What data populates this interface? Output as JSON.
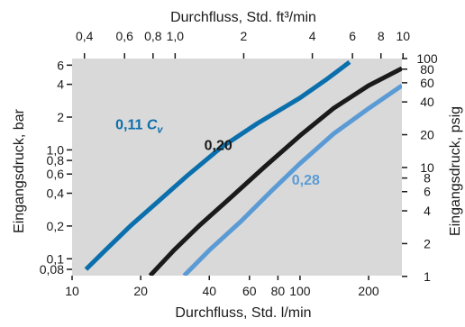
{
  "chart_data": {
    "type": "line",
    "title": "",
    "xlabel_bottom": "Durchfluss, Std. l/min",
    "xlabel_top": "Durchfluss, Std. ft³/min",
    "ylabel_left": "Eingangsdruck, bar",
    "ylabel_right": "Eingangsdruck, psig",
    "x_scale": "log",
    "y_scale": "log",
    "xlim": [
      10,
      280
    ],
    "ylim": [
      0.07,
      6.9
    ],
    "grid": false,
    "background": "#d9d9d9",
    "x_bottom_ticks": [
      {
        "value": 10,
        "label": "10"
      },
      {
        "value": 20,
        "label": "20"
      },
      {
        "value": 40,
        "label": "40"
      },
      {
        "value": 60,
        "label": "60"
      },
      {
        "value": 80,
        "label": "80"
      },
      {
        "value": 100,
        "label": "100"
      },
      {
        "value": 200,
        "label": "200"
      }
    ],
    "x_top_ticks": [
      {
        "value": 0.4,
        "label": "0,4"
      },
      {
        "value": 0.6,
        "label": "0,6"
      },
      {
        "value": 0.8,
        "label": "0,8"
      },
      {
        "value": 1.0,
        "label": "1,0"
      },
      {
        "value": 2,
        "label": "2"
      },
      {
        "value": 4,
        "label": "4"
      },
      {
        "value": 6,
        "label": "6"
      },
      {
        "value": 8,
        "label": "8"
      },
      {
        "value": 10,
        "label": "10"
      }
    ],
    "y_left_ticks": [
      {
        "value": 0.08,
        "label": "0,08"
      },
      {
        "value": 0.1,
        "label": "0,1"
      },
      {
        "value": 0.2,
        "label": "0,2"
      },
      {
        "value": 0.4,
        "label": "0,4"
      },
      {
        "value": 0.6,
        "label": "0,6"
      },
      {
        "value": 0.8,
        "label": "0,8"
      },
      {
        "value": 1.0,
        "label": "1,0"
      },
      {
        "value": 2,
        "label": "2"
      },
      {
        "value": 4,
        "label": "4"
      },
      {
        "value": 6,
        "label": "6"
      }
    ],
    "y_right_ticks": [
      {
        "value": 1,
        "label": "1"
      },
      {
        "value": 2,
        "label": "2"
      },
      {
        "value": 4,
        "label": "4"
      },
      {
        "value": 6,
        "label": "6"
      },
      {
        "value": 8,
        "label": "8"
      },
      {
        "value": 10,
        "label": "10"
      },
      {
        "value": 20,
        "label": "20"
      },
      {
        "value": 40,
        "label": "40"
      },
      {
        "value": 60,
        "label": "60"
      },
      {
        "value": 80,
        "label": "80"
      },
      {
        "value": 100,
        "label": "100"
      }
    ],
    "series": [
      {
        "name": "0,11 Cv",
        "label_main": "0,11 C",
        "label_sub": "v",
        "label_at": {
          "x": 15.5,
          "y": 1.55
        },
        "color": "#0a6fac",
        "x": [
          11.5,
          14,
          18,
          24,
          32,
          45,
          65,
          100,
          130,
          165
        ],
        "y": [
          0.08,
          0.12,
          0.2,
          0.34,
          0.58,
          1.05,
          1.75,
          3.0,
          4.4,
          6.4
        ]
      },
      {
        "name": "0,20",
        "label_main": "0,20",
        "label_at": {
          "x": 38,
          "y": 1.0
        },
        "color": "#1a1a1a",
        "x": [
          22,
          28,
          36,
          50,
          70,
          100,
          140,
          200,
          280
        ],
        "y": [
          0.07,
          0.12,
          0.2,
          0.37,
          0.7,
          1.35,
          2.4,
          3.9,
          5.6
        ]
      },
      {
        "name": "0,28",
        "label_main": "0,28",
        "label_at": {
          "x": 92,
          "y": 0.48
        },
        "color": "#5b9bd5",
        "x": [
          31,
          40,
          55,
          75,
          100,
          140,
          200,
          280
        ],
        "y": [
          0.07,
          0.12,
          0.22,
          0.42,
          0.75,
          1.4,
          2.4,
          3.9
        ]
      }
    ]
  }
}
